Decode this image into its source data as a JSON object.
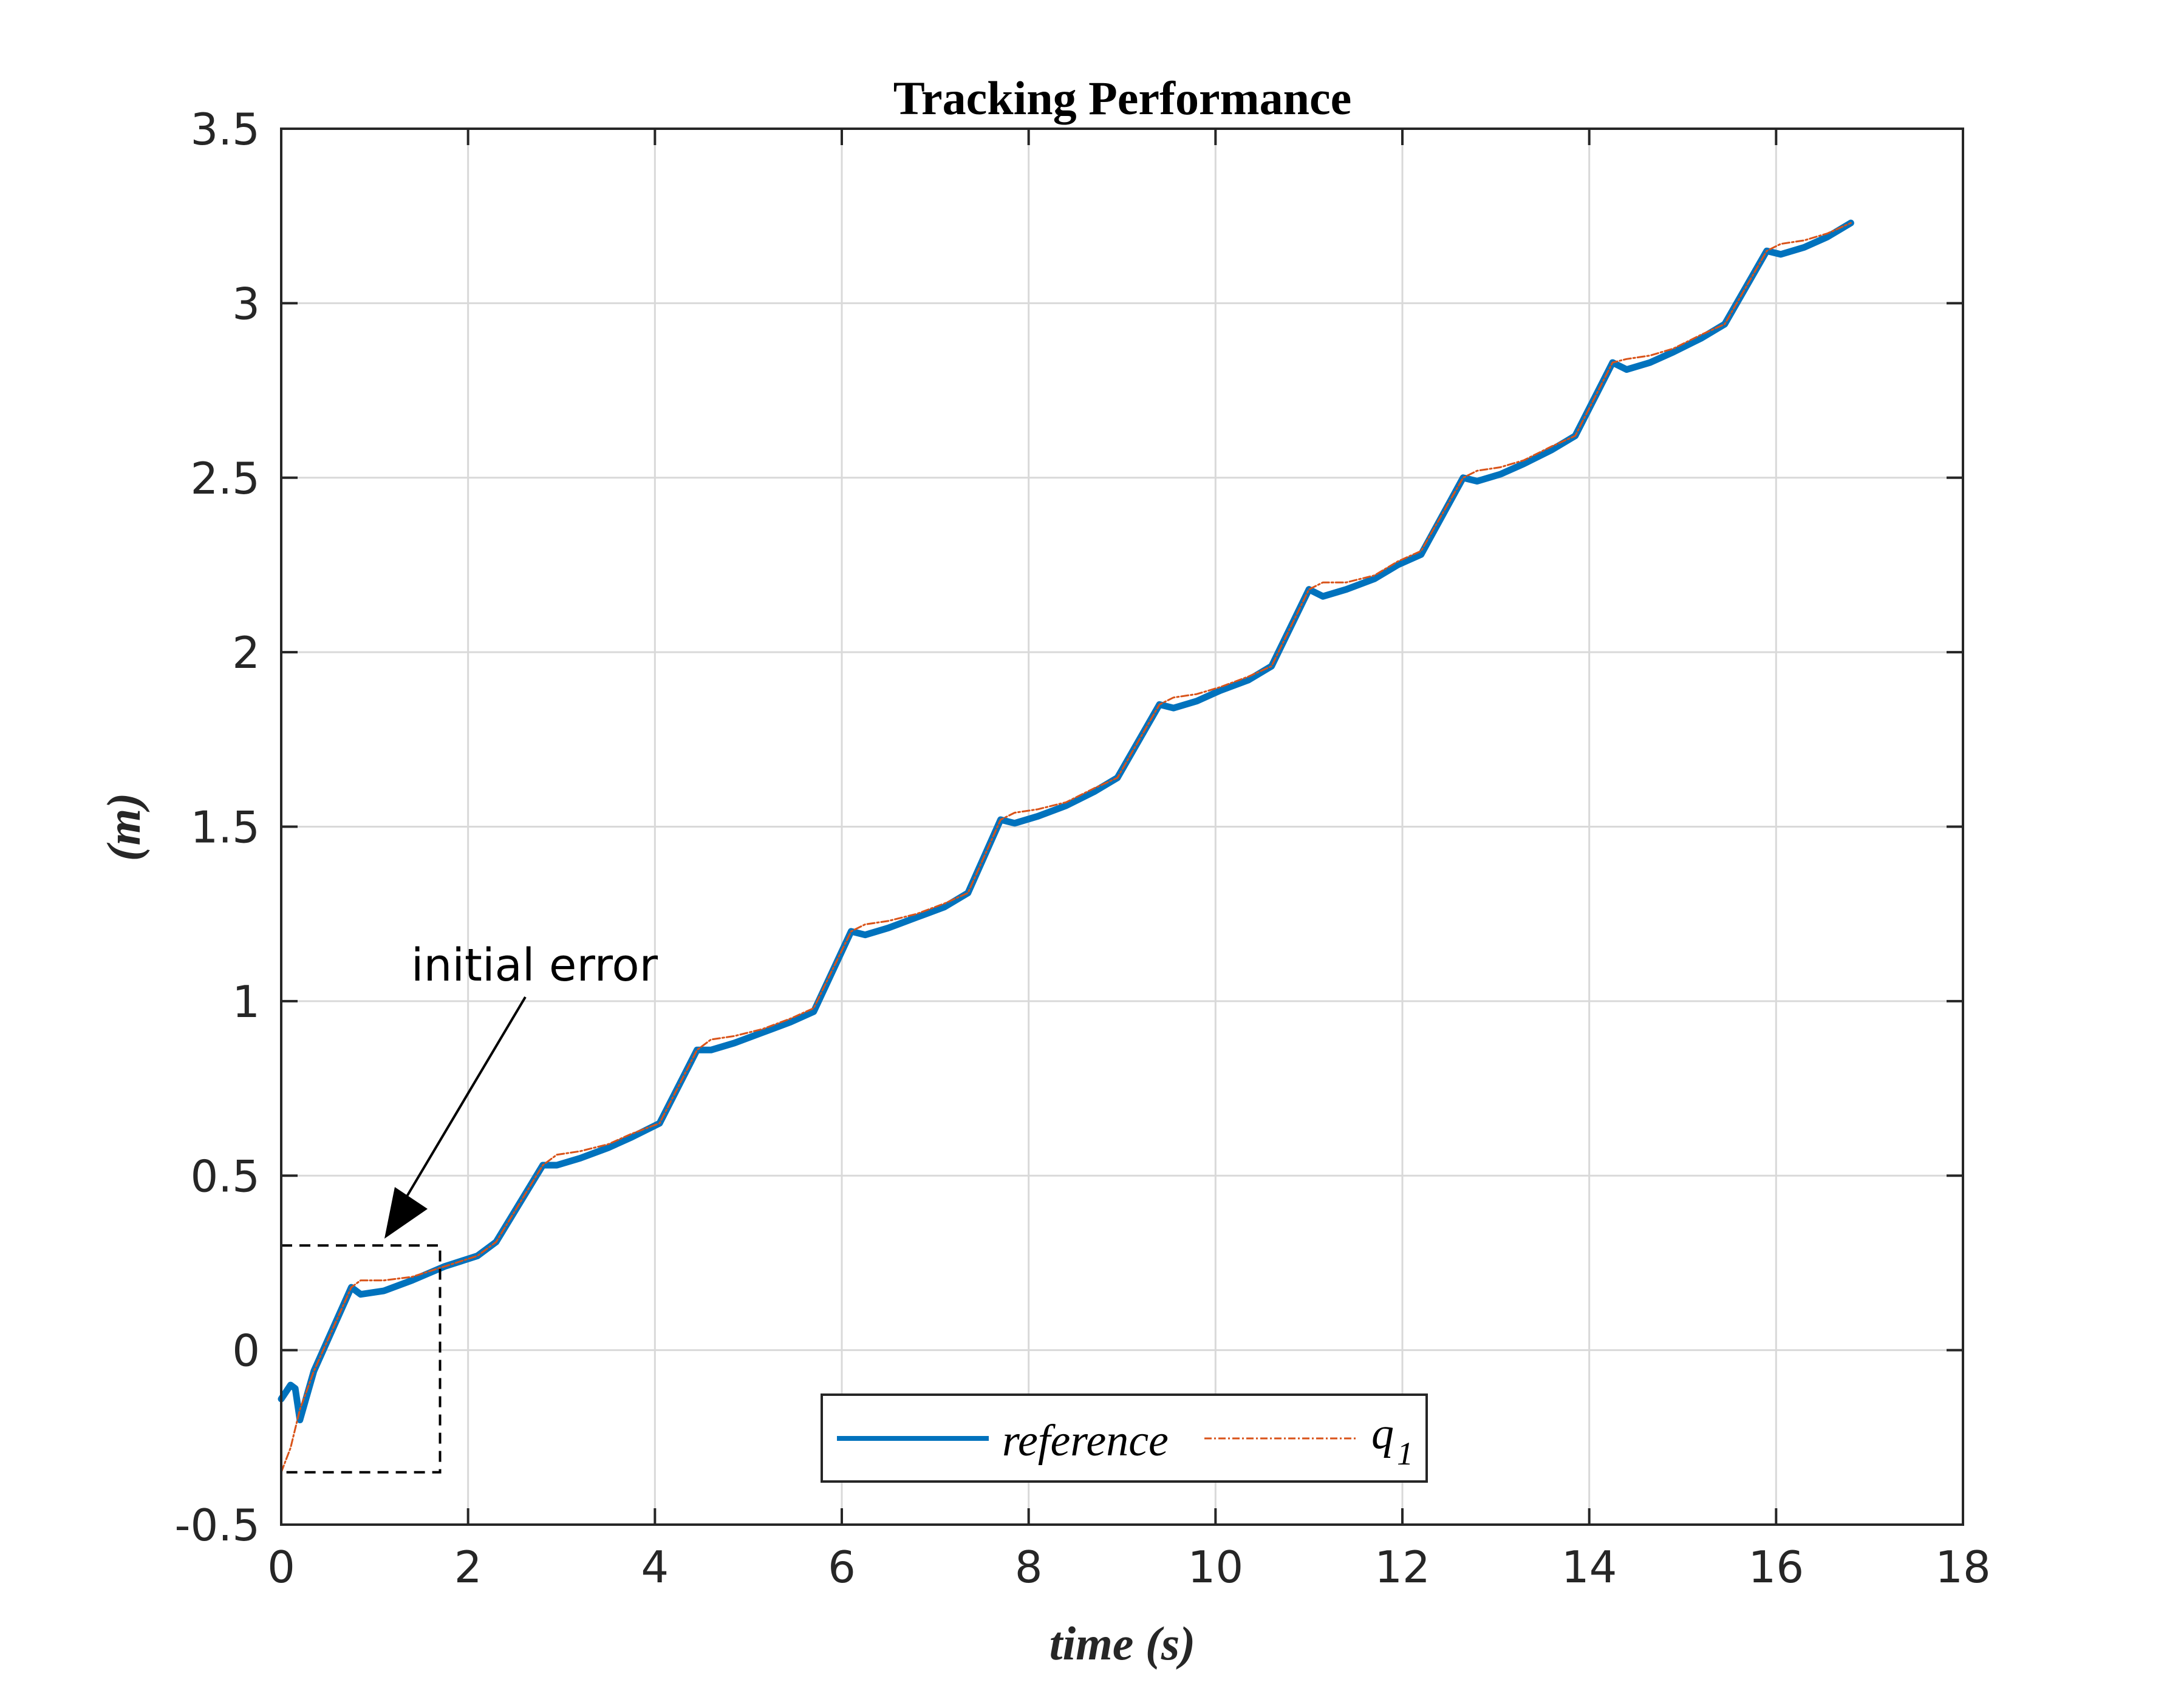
{
  "chart_data": {
    "type": "line",
    "title": "Tracking Performance",
    "xlabel": "time (s)",
    "ylabel": "(m)",
    "xlim": [
      0,
      18
    ],
    "ylim": [
      -0.5,
      3.5
    ],
    "xticks": [
      0,
      2,
      4,
      6,
      8,
      10,
      12,
      14,
      16,
      18
    ],
    "xtick_labels": [
      "0",
      "2",
      "4",
      "6",
      "8",
      "10",
      "12",
      "14",
      "16",
      "18"
    ],
    "yticks": [
      -0.5,
      0,
      0.5,
      1,
      1.5,
      2,
      2.5,
      3,
      3.5
    ],
    "ytick_labels": [
      "-0.5",
      "0",
      "0.5",
      "1",
      "1.5",
      "2",
      "2.5",
      "3",
      "3.5"
    ],
    "grid": true,
    "legend_position": "bottom-center",
    "series": [
      {
        "name": "reference",
        "color": "#0072bd",
        "style": "solid",
        "x": [
          0,
          0.1,
          0.15,
          0.2,
          0.35,
          0.55,
          0.75,
          0.85,
          1.1,
          1.4,
          1.75,
          2.1,
          2.3,
          2.8,
          2.95,
          3.2,
          3.5,
          3.75,
          4.05,
          4.45,
          4.6,
          4.85,
          5.15,
          5.45,
          5.7,
          6.1,
          6.25,
          6.5,
          6.8,
          7.1,
          7.35,
          7.7,
          7.85,
          8.1,
          8.4,
          8.7,
          8.95,
          9.4,
          9.55,
          9.8,
          10.05,
          10.35,
          10.6,
          11.0,
          11.15,
          11.4,
          11.7,
          11.95,
          12.2,
          12.65,
          12.8,
          13.05,
          13.3,
          13.6,
          13.85,
          14.25,
          14.4,
          14.65,
          14.9,
          15.2,
          15.45,
          15.9,
          16.05,
          16.3,
          16.55,
          16.8
        ],
        "y": [
          -0.14,
          -0.1,
          -0.11,
          -0.2,
          -0.06,
          0.06,
          0.18,
          0.16,
          0.17,
          0.2,
          0.24,
          0.27,
          0.31,
          0.53,
          0.53,
          0.55,
          0.58,
          0.61,
          0.65,
          0.86,
          0.86,
          0.88,
          0.91,
          0.94,
          0.97,
          1.2,
          1.19,
          1.21,
          1.24,
          1.27,
          1.31,
          1.52,
          1.51,
          1.53,
          1.56,
          1.6,
          1.64,
          1.85,
          1.84,
          1.86,
          1.89,
          1.92,
          1.96,
          2.18,
          2.16,
          2.18,
          2.21,
          2.25,
          2.28,
          2.5,
          2.49,
          2.51,
          2.54,
          2.58,
          2.62,
          2.83,
          2.81,
          2.83,
          2.86,
          2.9,
          2.94,
          3.15,
          3.14,
          3.16,
          3.19,
          3.23
        ]
      },
      {
        "name": "q_1",
        "color": "#d95319",
        "style": "dash-dot",
        "x": [
          0,
          0.1,
          0.2,
          0.35,
          0.55,
          0.75,
          0.85,
          1.1,
          1.4,
          1.75,
          2.1,
          2.3,
          2.8,
          2.95,
          3.2,
          3.5,
          3.75,
          4.05,
          4.45,
          4.6,
          4.85,
          5.15,
          5.45,
          5.7,
          6.1,
          6.25,
          6.5,
          6.8,
          7.1,
          7.35,
          7.7,
          7.85,
          8.1,
          8.4,
          8.7,
          8.95,
          9.4,
          9.55,
          9.8,
          10.05,
          10.35,
          10.6,
          11.0,
          11.15,
          11.4,
          11.7,
          11.95,
          12.2,
          12.65,
          12.8,
          13.05,
          13.3,
          13.6,
          13.85,
          14.25,
          14.4,
          14.65,
          14.9,
          15.2,
          15.45,
          15.9,
          16.05,
          16.3,
          16.55,
          16.8
        ],
        "y": [
          -0.35,
          -0.28,
          -0.17,
          -0.06,
          0.06,
          0.18,
          0.2,
          0.2,
          0.21,
          0.24,
          0.27,
          0.31,
          0.53,
          0.56,
          0.57,
          0.59,
          0.62,
          0.65,
          0.86,
          0.89,
          0.9,
          0.92,
          0.95,
          0.98,
          1.2,
          1.22,
          1.23,
          1.25,
          1.28,
          1.31,
          1.52,
          1.54,
          1.55,
          1.57,
          1.61,
          1.64,
          1.85,
          1.87,
          1.88,
          1.9,
          1.93,
          1.96,
          2.18,
          2.2,
          2.2,
          2.22,
          2.26,
          2.29,
          2.5,
          2.52,
          2.53,
          2.55,
          2.59,
          2.62,
          2.83,
          2.84,
          2.85,
          2.87,
          2.91,
          2.94,
          3.15,
          3.17,
          3.18,
          3.2,
          3.23
        ]
      }
    ],
    "annotations": [
      {
        "text": "initial error",
        "box_x": [
          0,
          1.7
        ],
        "box_y": [
          -0.35,
          0.3
        ]
      }
    ]
  },
  "legend": {
    "reference_label": "reference",
    "q1_base": "q",
    "q1_sub": "1"
  }
}
